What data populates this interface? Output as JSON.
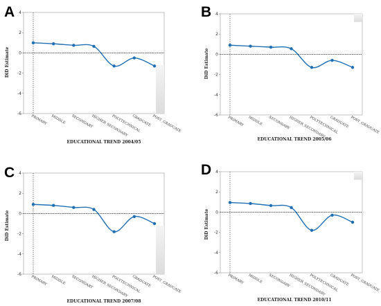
{
  "chart_data": [
    {
      "panel": "A",
      "type": "line",
      "xlabel": "EDUCATIONAL TREND 2004/05",
      "ylabel": "DiD Estimate",
      "categories": [
        "PRIMARY",
        "MIDDLE",
        "SECONDARY",
        "HIGHER_SECONDARY",
        "POLYTECHNICAL",
        "GRADUATE",
        "POST_GRADUATE"
      ],
      "values": [
        1.0,
        0.9,
        0.75,
        0.65,
        -1.3,
        -0.5,
        -1.3
      ],
      "ylim": [
        -6,
        4
      ],
      "yticks": [
        -6,
        -4,
        -2,
        0,
        2,
        4
      ],
      "grid": false,
      "color": "#1f6fb4"
    },
    {
      "panel": "B",
      "type": "line",
      "xlabel": "EDUCATIONAL TREND 2005/06",
      "ylabel": "DiD Estimate",
      "categories": [
        "PRIMARY",
        "MIDDLE",
        "SECONDARY",
        "HIGHER_SECONDARY",
        "POLYTECHNICAL",
        "GRADUATE",
        "POST_GRADUATE"
      ],
      "values": [
        0.9,
        0.8,
        0.7,
        0.55,
        -1.3,
        -0.6,
        -1.3
      ],
      "ylim": [
        -6,
        4
      ],
      "yticks": [
        -6,
        -4,
        -2,
        0,
        2,
        4
      ],
      "grid": false,
      "color": "#1f6fb4"
    },
    {
      "panel": "C",
      "type": "line",
      "xlabel": "EDUCATIONAL TREND 2007/08",
      "ylabel": "DiD Estimate",
      "categories": [
        "PRIMARY",
        "MIDDLE",
        "SECONDARY",
        "HIGHER_SECONDARY",
        "POLYTECHNICAL",
        "GRADUATE",
        "POST_GRADUATE"
      ],
      "values": [
        0.9,
        0.8,
        0.6,
        0.4,
        -1.8,
        -0.3,
        -1.0
      ],
      "ylim": [
        -6,
        4
      ],
      "yticks": [
        -6,
        -4,
        -2,
        0,
        2,
        4
      ],
      "grid": false,
      "color": "#1f6fb4"
    },
    {
      "panel": "D",
      "type": "line",
      "xlabel": "EDUCATIONAL TREND 2010/11",
      "ylabel": "DiD Estimate",
      "categories": [
        "PRIMARY",
        "MIDDLE",
        "SECONDARY",
        "HIGHER_SECONDARY",
        "POLYTECHNICAL",
        "GRADUATE",
        "POST_GRADUATE"
      ],
      "values": [
        0.95,
        0.85,
        0.65,
        0.45,
        -1.8,
        -0.3,
        -1.0
      ],
      "ylim": [
        -6,
        4
      ],
      "yticks": [
        -6,
        -4,
        -2,
        0,
        2,
        4
      ],
      "grid": false,
      "color": "#1f6fb4"
    }
  ]
}
